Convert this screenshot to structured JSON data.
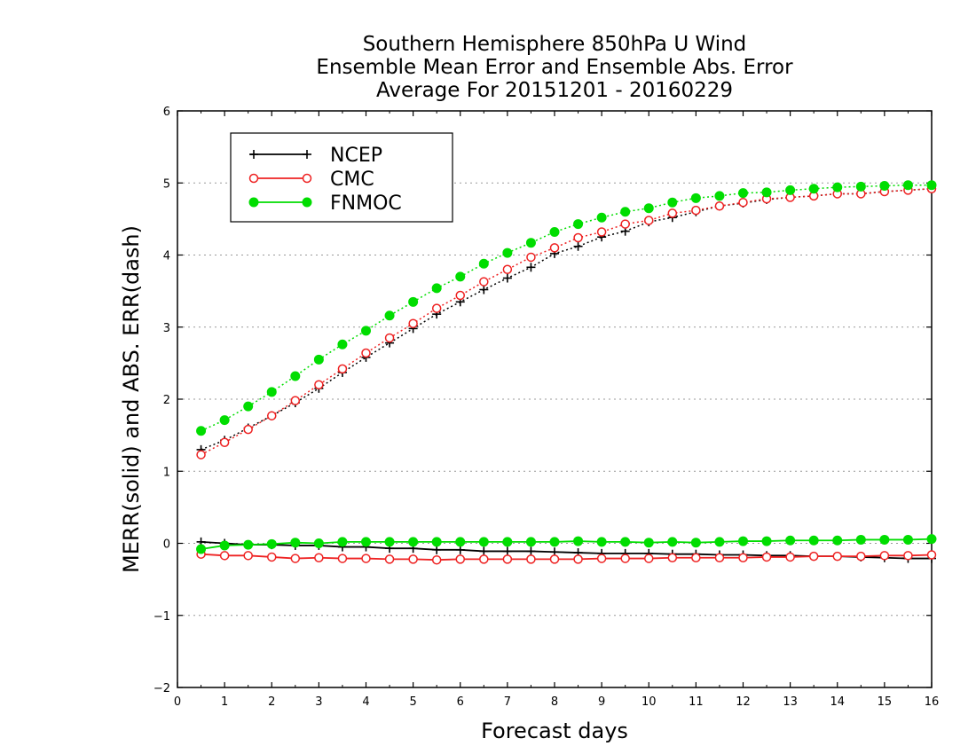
{
  "chart_data": {
    "type": "line",
    "title_lines": [
      "Southern Hemisphere 850hPa U Wind",
      "Ensemble Mean Error and Ensemble Abs. Error",
      "Average For 20151201 - 20160229"
    ],
    "xlabel": "Forecast days",
    "ylabel": "MERR(solid) and ABS. ERR(dash)",
    "xlim": [
      0,
      16
    ],
    "ylim": [
      -2,
      6
    ],
    "xticks": [
      0,
      1,
      2,
      3,
      4,
      5,
      6,
      7,
      8,
      9,
      10,
      11,
      12,
      13,
      14,
      15,
      16
    ],
    "yticks": [
      -2,
      -1,
      0,
      1,
      2,
      3,
      4,
      5,
      6
    ],
    "grid": "horizontal dotted",
    "legend_placement": "top-left",
    "x": [
      0.5,
      1,
      1.5,
      2,
      2.5,
      3,
      3.5,
      4,
      4.5,
      5,
      5.5,
      6,
      6.5,
      7,
      7.5,
      8,
      8.5,
      9,
      9.5,
      10,
      10.5,
      11,
      11.5,
      12,
      12.5,
      13,
      13.5,
      14,
      14.5,
      15,
      15.5,
      16
    ],
    "series": [
      {
        "name": "NCEP",
        "color": "#000000",
        "marker": "plus",
        "merr": [
          0.02,
          0.0,
          -0.02,
          -0.02,
          -0.03,
          -0.03,
          -0.05,
          -0.05,
          -0.07,
          -0.07,
          -0.09,
          -0.09,
          -0.11,
          -0.11,
          -0.11,
          -0.12,
          -0.13,
          -0.14,
          -0.14,
          -0.14,
          -0.15,
          -0.15,
          -0.16,
          -0.16,
          -0.17,
          -0.17,
          -0.18,
          -0.18,
          -0.19,
          -0.2,
          -0.21,
          -0.21
        ],
        "abs_err": [
          1.3,
          1.43,
          1.6,
          1.77,
          1.95,
          2.15,
          2.37,
          2.58,
          2.78,
          2.98,
          3.18,
          3.35,
          3.52,
          3.68,
          3.83,
          4.02,
          4.12,
          4.25,
          4.33,
          4.46,
          4.52,
          4.6,
          4.68,
          4.72,
          4.77,
          4.8,
          4.82,
          4.85,
          4.85,
          4.88,
          4.9,
          4.92
        ]
      },
      {
        "name": "CMC",
        "color": "#ee2222",
        "marker": "open-circle",
        "merr": [
          -0.15,
          -0.17,
          -0.17,
          -0.19,
          -0.21,
          -0.2,
          -0.21,
          -0.21,
          -0.22,
          -0.22,
          -0.23,
          -0.22,
          -0.22,
          -0.22,
          -0.22,
          -0.22,
          -0.22,
          -0.21,
          -0.21,
          -0.21,
          -0.2,
          -0.2,
          -0.2,
          -0.2,
          -0.19,
          -0.19,
          -0.18,
          -0.18,
          -0.18,
          -0.17,
          -0.17,
          -0.16
        ],
        "abs_err": [
          1.23,
          1.4,
          1.58,
          1.77,
          1.98,
          2.2,
          2.42,
          2.64,
          2.85,
          3.05,
          3.26,
          3.44,
          3.63,
          3.8,
          3.97,
          4.1,
          4.24,
          4.32,
          4.43,
          4.48,
          4.58,
          4.62,
          4.68,
          4.73,
          4.78,
          4.8,
          4.82,
          4.85,
          4.85,
          4.88,
          4.9,
          4.92
        ]
      },
      {
        "name": "FNMOC",
        "color": "#00dd00",
        "marker": "filled-circle",
        "merr": [
          -0.08,
          -0.03,
          -0.02,
          -0.01,
          0.01,
          0.0,
          0.02,
          0.02,
          0.02,
          0.02,
          0.02,
          0.02,
          0.02,
          0.02,
          0.02,
          0.02,
          0.03,
          0.02,
          0.02,
          0.01,
          0.02,
          0.01,
          0.02,
          0.03,
          0.03,
          0.04,
          0.04,
          0.04,
          0.05,
          0.05,
          0.05,
          0.06
        ],
        "abs_err": [
          1.56,
          1.71,
          1.9,
          2.1,
          2.32,
          2.55,
          2.76,
          2.95,
          3.16,
          3.35,
          3.54,
          3.7,
          3.88,
          4.03,
          4.17,
          4.32,
          4.43,
          4.52,
          4.6,
          4.65,
          4.73,
          4.79,
          4.82,
          4.86,
          4.87,
          4.9,
          4.92,
          4.94,
          4.95,
          4.96,
          4.97,
          4.97
        ]
      }
    ]
  }
}
